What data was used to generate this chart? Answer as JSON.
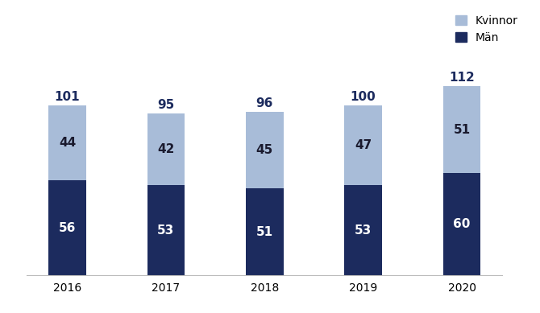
{
  "years": [
    "2016",
    "2017",
    "2018",
    "2019",
    "2020"
  ],
  "man_values": [
    56,
    53,
    51,
    53,
    60
  ],
  "kvinnor_values": [
    44,
    42,
    45,
    47,
    51
  ],
  "totals": [
    101,
    95,
    96,
    100,
    112
  ],
  "man_color": "#1c2b5e",
  "kvinnor_color": "#a8bcd8",
  "man_label": "Män",
  "kvinnor_label": "Kvinnor",
  "bar_width": 0.38,
  "ylim": [
    0,
    125
  ],
  "background_color": "#ffffff",
  "text_color_white": "#ffffff",
  "text_color_dark": "#1a1a2e",
  "text_color_total": "#1c2b5e",
  "fontsize_bar": 11,
  "fontsize_total": 11,
  "fontsize_tick": 10,
  "fontsize_legend": 10
}
